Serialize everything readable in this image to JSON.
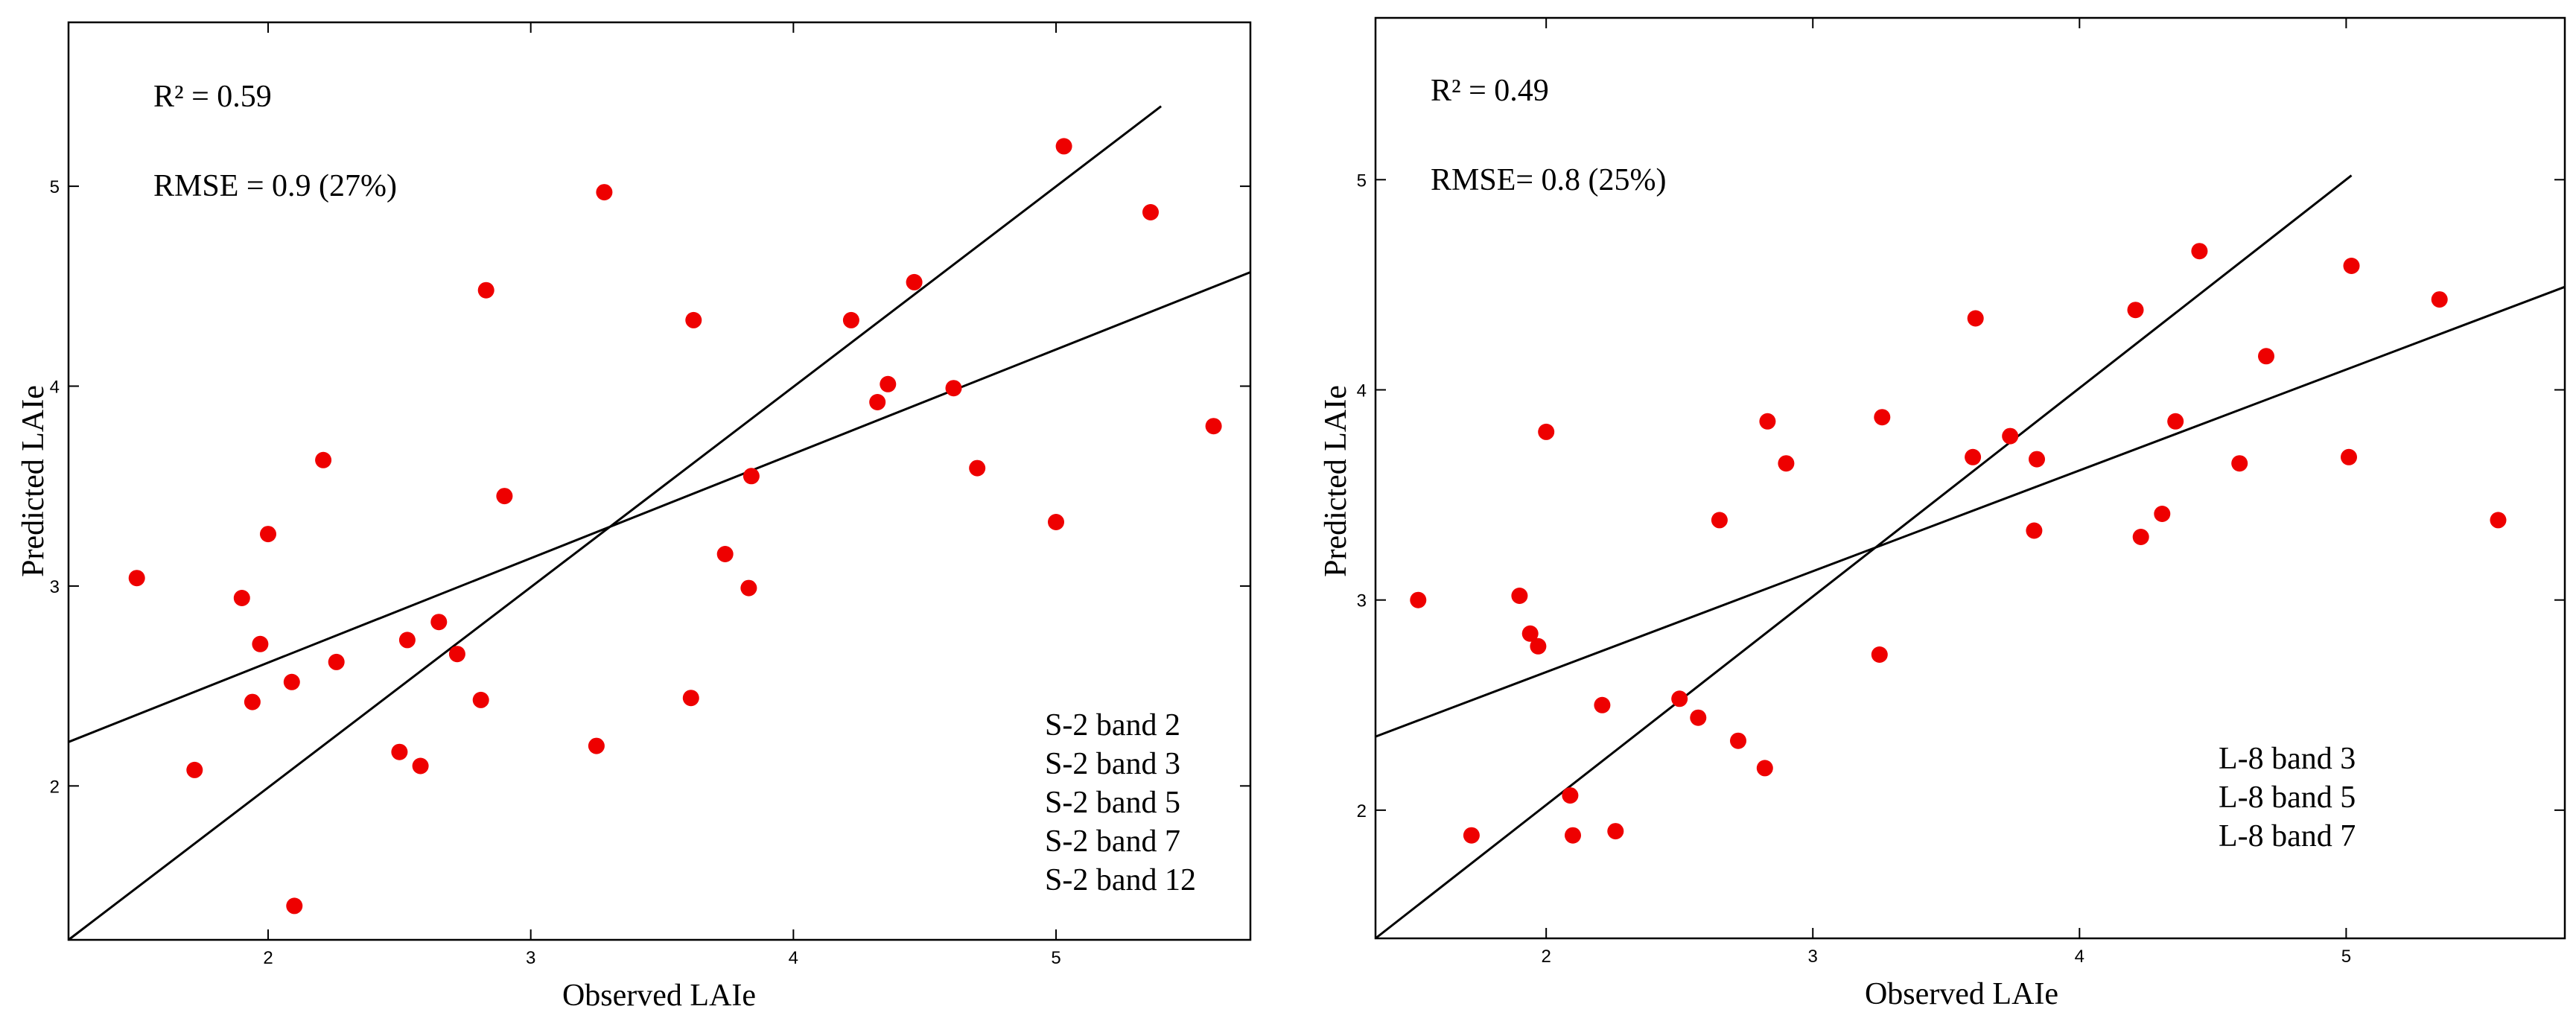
{
  "colors": {
    "points": "#ee0000",
    "lines": "#000000",
    "axes": "#000000",
    "background": "#ffffff"
  },
  "chart_data": [
    {
      "type": "scatter",
      "xlabel": "Observed LAIe",
      "ylabel": "Predicted LAIe",
      "xlim": [
        1.24,
        5.74
      ],
      "ylim": [
        1.23,
        5.82
      ],
      "x_ticks": [
        "2",
        "3",
        "4",
        "5"
      ],
      "y_ticks": [
        "2",
        "3",
        "4",
        "5"
      ],
      "grid": false,
      "annotations": {
        "r2": "R² = 0.59",
        "rmse": "RMSE = 0.9 (27%)"
      },
      "legend_position": "bottom-right",
      "legend": [
        "S-2 band 2",
        "S-2 band 3",
        "S-2 band 5",
        "S-2 band 7",
        "S-2 band 12"
      ],
      "lines": [
        {
          "name": "1:1 line",
          "x": [
            1.24,
            5.4
          ],
          "y": [
            1.23,
            5.4
          ]
        },
        {
          "name": "regression line",
          "x": [
            1.24,
            5.74
          ],
          "y": [
            2.22,
            4.57
          ]
        }
      ],
      "points": {
        "x": [
          1.5,
          1.72,
          1.9,
          1.94,
          1.97,
          2.0,
          2.09,
          2.1,
          2.21,
          2.26,
          2.5,
          2.53,
          2.58,
          2.65,
          2.72,
          2.81,
          2.83,
          2.9,
          3.25,
          3.28,
          3.61,
          3.62,
          3.74,
          3.83,
          3.84,
          4.22,
          4.32,
          4.36,
          4.46,
          4.61,
          4.7,
          5.0,
          5.03,
          5.36,
          5.6
        ],
        "y": [
          3.04,
          2.08,
          2.94,
          2.42,
          2.71,
          3.26,
          2.52,
          1.4,
          3.63,
          2.62,
          2.17,
          2.73,
          2.1,
          2.82,
          2.66,
          2.43,
          4.48,
          3.45,
          2.2,
          4.97,
          2.44,
          4.33,
          3.16,
          2.99,
          3.55,
          4.33,
          3.92,
          4.01,
          4.52,
          3.99,
          3.59,
          3.32,
          5.2,
          4.87,
          3.8
        ]
      }
    },
    {
      "type": "scatter",
      "xlabel": "Observed LAIe",
      "ylabel": "Predicted LAIe",
      "xlim": [
        1.36,
        5.82
      ],
      "ylim": [
        1.39,
        5.77
      ],
      "x_ticks": [
        "2",
        "3",
        "4",
        "5"
      ],
      "y_ticks": [
        "2",
        "3",
        "4",
        "5"
      ],
      "grid": false,
      "annotations": {
        "r2": "R² = 0.49",
        "rmse": "RMSE= 0.8 (25%)"
      },
      "legend_position": "bottom-right",
      "legend": [
        "L-8 band 3",
        "L-8 band 5",
        "L-8 band 7"
      ],
      "lines": [
        {
          "name": "1:1 line",
          "x": [
            1.36,
            5.02
          ],
          "y": [
            1.39,
            5.02
          ]
        },
        {
          "name": "regression line",
          "x": [
            1.36,
            5.82
          ],
          "y": [
            2.35,
            4.49
          ]
        }
      ],
      "points": {
        "x": [
          1.52,
          1.72,
          1.9,
          1.94,
          1.97,
          2.0,
          2.09,
          2.1,
          2.21,
          2.26,
          2.5,
          2.57,
          2.65,
          2.72,
          2.82,
          2.83,
          2.9,
          3.25,
          3.26,
          3.6,
          3.61,
          3.74,
          3.83,
          3.84,
          4.21,
          4.23,
          4.31,
          4.36,
          4.45,
          4.6,
          4.7,
          5.01,
          5.02,
          5.35,
          5.57
        ],
        "y": [
          3.0,
          1.88,
          3.02,
          2.84,
          2.78,
          3.8,
          2.07,
          1.88,
          2.5,
          1.9,
          2.53,
          2.44,
          3.38,
          2.33,
          2.2,
          3.85,
          3.65,
          2.74,
          3.87,
          3.68,
          4.34,
          3.78,
          3.33,
          3.67,
          4.38,
          3.3,
          3.41,
          3.85,
          4.66,
          3.65,
          4.16,
          3.68,
          4.59,
          4.43,
          3.38
        ]
      }
    }
  ]
}
